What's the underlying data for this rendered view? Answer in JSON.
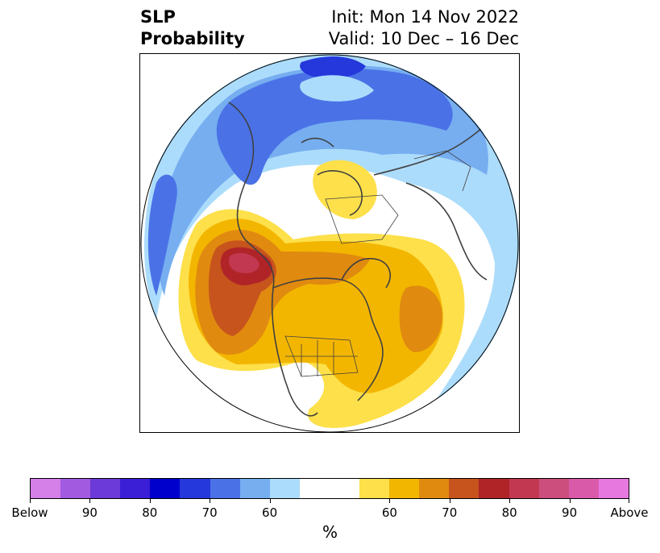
{
  "title": {
    "left_line1": "SLP",
    "left_line2": "Probability",
    "right_line1": "Init: Mon 14 Nov 2022",
    "right_line2": "Valid: 10 Dec – 16 Dec"
  },
  "map": {
    "projection": "north-polar-stereographic",
    "features": [
      "coastlines",
      "country-borders",
      "us-state-borders"
    ],
    "anomalies": [
      {
        "region": "Arctic / Siberia",
        "category": "Below",
        "peak_probability": 80
      },
      {
        "region": "Greenland / North Atlantic",
        "category": "Below",
        "peak_probability": 60
      },
      {
        "region": "Scandinavia",
        "category": "Above",
        "peak_probability": 60
      },
      {
        "region": "Gulf of Alaska / Aleutians",
        "category": "Above",
        "peak_probability": 90
      },
      {
        "region": "Canadian Archipelago",
        "category": "Above",
        "peak_probability": 70
      },
      {
        "region": "North Atlantic (east of Canada)",
        "category": "Above",
        "peak_probability": 70
      }
    ]
  },
  "colorbar": {
    "unit": "%",
    "segments": [
      "#d57fe8",
      "#a15ae0",
      "#6c3ad8",
      "#3a1fd6",
      "#0000cc",
      "#2438dc",
      "#4a72e6",
      "#76aef0",
      "#acdcfb",
      "#ffffff",
      "#ffffff",
      "#fde04a",
      "#f3b600",
      "#e08a10",
      "#c6541c",
      "#b02428",
      "#c23850",
      "#cc4e7c",
      "#da5aaa",
      "#e678e0"
    ],
    "tick_labels": [
      "Below",
      "90",
      "80",
      "70",
      "60",
      "60",
      "70",
      "80",
      "90",
      "Above"
    ],
    "tick_index": [
      0,
      2,
      4,
      6,
      8,
      12,
      14,
      16,
      18,
      20
    ]
  }
}
